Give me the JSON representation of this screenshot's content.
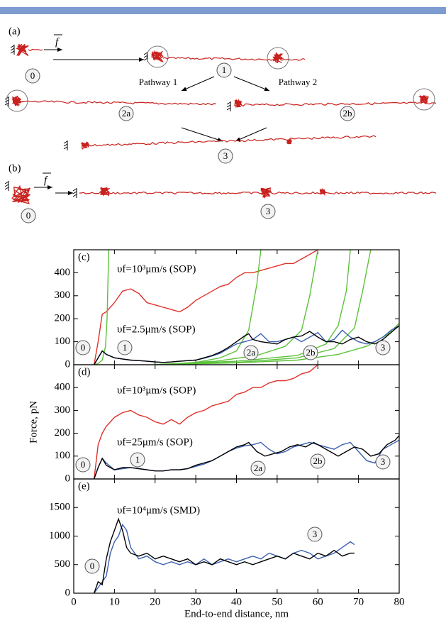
{
  "diagram": {
    "panel_a": {
      "label": "(a)",
      "force": "f",
      "pathways": [
        "Pathway 1",
        "Pathway 2"
      ],
      "states": [
        "0",
        "1",
        "2a",
        "2b",
        "3"
      ]
    },
    "panel_b": {
      "label": "(b)",
      "force": "f",
      "states": [
        "0",
        "3"
      ]
    }
  },
  "chart_data": [
    {
      "type": "line",
      "panel": "(c)",
      "xlim": [
        0,
        80
      ],
      "xticks": [
        0,
        10,
        20,
        30,
        40,
        50,
        60,
        70,
        80
      ],
      "ylim": [
        0,
        500
      ],
      "yticks": [
        0,
        100,
        200,
        300,
        400
      ],
      "annotations": [
        "υf=10³μm/s (SOP)",
        "υf=2.5μm/s (SOP)"
      ],
      "states": [
        "0",
        "1",
        "2a",
        "2b",
        "3"
      ],
      "series": [
        {
          "color": "#e0302a",
          "x": [
            5,
            6,
            7,
            8,
            10,
            12,
            14,
            16,
            18,
            20,
            22,
            24,
            26,
            28,
            30,
            32,
            34,
            36,
            38,
            40,
            42,
            44,
            46,
            48,
            50,
            52,
            54,
            56,
            58,
            60
          ],
          "values": [
            0,
            100,
            220,
            230,
            270,
            320,
            330,
            310,
            270,
            260,
            250,
            240,
            230,
            250,
            280,
            300,
            320,
            340,
            350,
            380,
            400,
            400,
            410,
            420,
            430,
            440,
            440,
            460,
            480,
            500
          ]
        },
        {
          "color": "#5cc23a",
          "x": [
            5,
            6,
            7,
            7.8,
            8.2,
            8.6
          ],
          "values": [
            0,
            5,
            20,
            80,
            200,
            500
          ]
        },
        {
          "color": "#5cc23a",
          "x": [
            20,
            30,
            36,
            40,
            43,
            45,
            46
          ],
          "values": [
            0,
            10,
            30,
            60,
            150,
            350,
            500
          ]
        },
        {
          "color": "#5cc23a",
          "x": [
            20,
            35,
            45,
            52,
            56,
            58,
            60
          ],
          "values": [
            0,
            15,
            40,
            80,
            150,
            300,
            500
          ]
        },
        {
          "color": "#5cc23a",
          "x": [
            20,
            40,
            55,
            62,
            65,
            67,
            68
          ],
          "values": [
            0,
            15,
            40,
            90,
            170,
            320,
            500
          ]
        },
        {
          "color": "#5cc23a",
          "x": [
            20,
            40,
            55,
            64,
            69,
            71,
            73
          ],
          "values": [
            0,
            10,
            30,
            70,
            160,
            320,
            500
          ]
        },
        {
          "color": "#5cc23a",
          "x": [
            20,
            40,
            55,
            65,
            72,
            77,
            80
          ],
          "values": [
            0,
            8,
            20,
            45,
            80,
            130,
            180
          ]
        },
        {
          "color": "#3a5fb0",
          "x": [
            5,
            6,
            7,
            8,
            10,
            12,
            14,
            16,
            18,
            20,
            22,
            24,
            26,
            28,
            30,
            32,
            34,
            36,
            38,
            40,
            42,
            44,
            46,
            48,
            50,
            52,
            54,
            56,
            58,
            60,
            62,
            64,
            66,
            68,
            70,
            72,
            74,
            76,
            78,
            80
          ],
          "values": [
            0,
            30,
            60,
            45,
            30,
            25,
            20,
            18,
            15,
            12,
            10,
            12,
            15,
            18,
            20,
            28,
            38,
            50,
            70,
            90,
            100,
            110,
            135,
            100,
            100,
            110,
            120,
            100,
            120,
            140,
            100,
            110,
            150,
            120,
            100,
            90,
            100,
            120,
            150,
            170
          ]
        },
        {
          "color": "#000000",
          "x": [
            5,
            6,
            7,
            8,
            10,
            12,
            14,
            16,
            18,
            20,
            22,
            24,
            26,
            28,
            30,
            32,
            34,
            36,
            38,
            40,
            42,
            43,
            44,
            46,
            48,
            50,
            52,
            54,
            56,
            58,
            60,
            62,
            64,
            66,
            68,
            70,
            72,
            74,
            76,
            78,
            80
          ],
          "values": [
            0,
            30,
            60,
            45,
            30,
            25,
            20,
            18,
            15,
            12,
            10,
            12,
            15,
            18,
            20,
            30,
            40,
            55,
            75,
            100,
            125,
            135,
            110,
            100,
            95,
            90,
            110,
            120,
            125,
            145,
            120,
            100,
            100,
            90,
            110,
            120,
            100,
            90,
            110,
            140,
            170
          ]
        }
      ]
    },
    {
      "type": "line",
      "panel": "(d)",
      "ylabel": "Force, pN",
      "xlim": [
        0,
        80
      ],
      "xticks": [
        0,
        10,
        20,
        30,
        40,
        50,
        60,
        70,
        80
      ],
      "ylim": [
        0,
        500
      ],
      "yticks": [
        0,
        100,
        200,
        300,
        400
      ],
      "annotations": [
        "υf=10³μm/s (SOP)",
        "υf=25μm/s (SOP)"
      ],
      "states": [
        "0",
        "1",
        "2a",
        "2b",
        "3"
      ],
      "series": [
        {
          "color": "#e0302a",
          "x": [
            5,
            6,
            7,
            8,
            10,
            12,
            14,
            16,
            18,
            20,
            22,
            24,
            26,
            28,
            30,
            32,
            34,
            36,
            38,
            40,
            42,
            44,
            46,
            48,
            50,
            52,
            54,
            56,
            58,
            60
          ],
          "values": [
            0,
            150,
            200,
            230,
            270,
            290,
            300,
            280,
            270,
            250,
            240,
            260,
            240,
            270,
            290,
            300,
            320,
            330,
            340,
            370,
            380,
            400,
            400,
            420,
            430,
            430,
            440,
            460,
            470,
            500
          ]
        },
        {
          "color": "#3a5fb0",
          "x": [
            5,
            6,
            7,
            8,
            10,
            12,
            14,
            16,
            18,
            20,
            22,
            24,
            26,
            28,
            30,
            32,
            34,
            36,
            38,
            40,
            42,
            44,
            46,
            48,
            50,
            52,
            54,
            56,
            58,
            60,
            62,
            64,
            66,
            68,
            70,
            72,
            74,
            76,
            78,
            80
          ],
          "values": [
            0,
            50,
            90,
            70,
            40,
            45,
            50,
            45,
            40,
            35,
            35,
            40,
            40,
            45,
            55,
            65,
            80,
            100,
            120,
            135,
            145,
            150,
            160,
            130,
            110,
            120,
            140,
            150,
            160,
            150,
            140,
            130,
            150,
            160,
            120,
            80,
            70,
            130,
            150,
            170
          ]
        },
        {
          "color": "#000000",
          "x": [
            5,
            6,
            7,
            8,
            10,
            12,
            14,
            16,
            18,
            20,
            22,
            24,
            26,
            28,
            30,
            32,
            34,
            36,
            38,
            40,
            42,
            43,
            45,
            47,
            49,
            51,
            53,
            55,
            57,
            59,
            61,
            63,
            65,
            67,
            69,
            71,
            73,
            75,
            77,
            79,
            80
          ],
          "values": [
            0,
            50,
            90,
            60,
            40,
            50,
            50,
            45,
            40,
            35,
            35,
            40,
            40,
            45,
            60,
            70,
            80,
            100,
            120,
            140,
            150,
            160,
            120,
            100,
            110,
            120,
            140,
            150,
            140,
            160,
            140,
            120,
            100,
            120,
            140,
            130,
            100,
            110,
            150,
            170,
            190
          ]
        }
      ]
    },
    {
      "type": "line",
      "panel": "(e)",
      "xlabel": "End-to-end distance, nm",
      "xlim": [
        0,
        80
      ],
      "xticks": [
        0,
        10,
        20,
        30,
        40,
        50,
        60,
        70,
        80
      ],
      "ylim": [
        0,
        2000
      ],
      "yticks": [
        0,
        500,
        1000,
        1500
      ],
      "annotations": [
        "υf=10⁴μm/s (SMD)"
      ],
      "states": [
        "0",
        "3"
      ],
      "series": [
        {
          "color": "#3a5fb0",
          "x": [
            5,
            6,
            8,
            9,
            10,
            11,
            12,
            13,
            14,
            16,
            18,
            20,
            22,
            24,
            26,
            28,
            30,
            32,
            34,
            36,
            38,
            40,
            42,
            44,
            46,
            48,
            50,
            52,
            54,
            56,
            58,
            60,
            62,
            64,
            66,
            68,
            69
          ],
          "values": [
            0,
            100,
            300,
            700,
            900,
            1000,
            1200,
            1100,
            800,
            600,
            650,
            550,
            500,
            550,
            500,
            550,
            500,
            600,
            500,
            550,
            600,
            550,
            600,
            650,
            600,
            700,
            650,
            600,
            700,
            750,
            700,
            600,
            650,
            700,
            800,
            900,
            850
          ]
        },
        {
          "color": "#000000",
          "x": [
            5,
            6,
            7,
            8,
            9,
            10,
            11,
            12,
            13,
            14,
            16,
            18,
            20,
            22,
            24,
            26,
            28,
            30,
            32,
            34,
            36,
            38,
            40,
            42,
            44,
            46,
            48,
            50,
            52,
            54,
            56,
            58,
            60,
            62,
            64,
            66,
            68,
            69
          ],
          "values": [
            0,
            200,
            150,
            600,
            900,
            1100,
            1300,
            1100,
            800,
            700,
            650,
            700,
            600,
            650,
            600,
            550,
            600,
            500,
            550,
            500,
            600,
            550,
            500,
            550,
            500,
            550,
            600,
            650,
            600,
            700,
            650,
            600,
            700,
            650,
            750,
            650,
            700,
            700
          ]
        }
      ]
    }
  ]
}
